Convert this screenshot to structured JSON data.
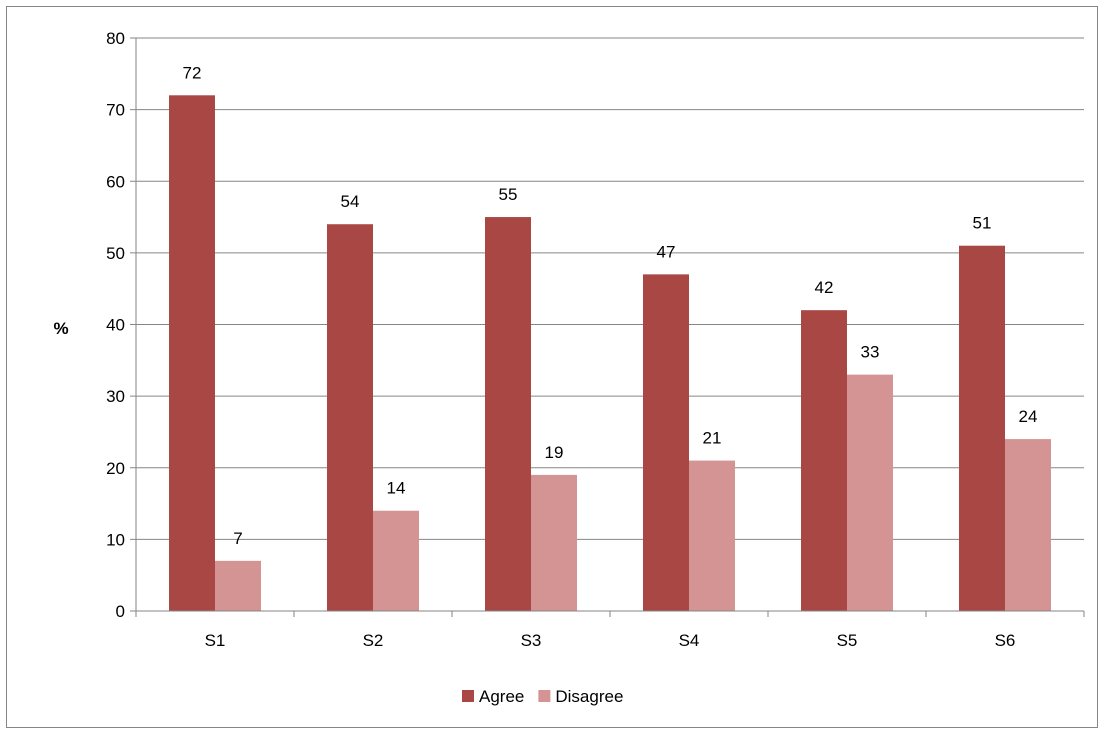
{
  "chart_data": {
    "type": "bar",
    "title": "",
    "xlabel": "",
    "ylabel": "%",
    "categories": [
      "S1",
      "S2",
      "S3",
      "S4",
      "S5",
      "S6"
    ],
    "series": [
      {
        "name": "Agree",
        "values": [
          72,
          54,
          55,
          47,
          42,
          51
        ],
        "color": "#A94745"
      },
      {
        "name": "Disagree",
        "values": [
          7,
          14,
          19,
          21,
          33,
          24
        ],
        "color": "#D39493"
      }
    ],
    "ylim": [
      0,
      80
    ],
    "yticks": [
      0,
      10,
      20,
      30,
      40,
      50,
      60,
      70,
      80
    ],
    "grid": true,
    "legend_position": "bottom",
    "data_labels": true
  }
}
